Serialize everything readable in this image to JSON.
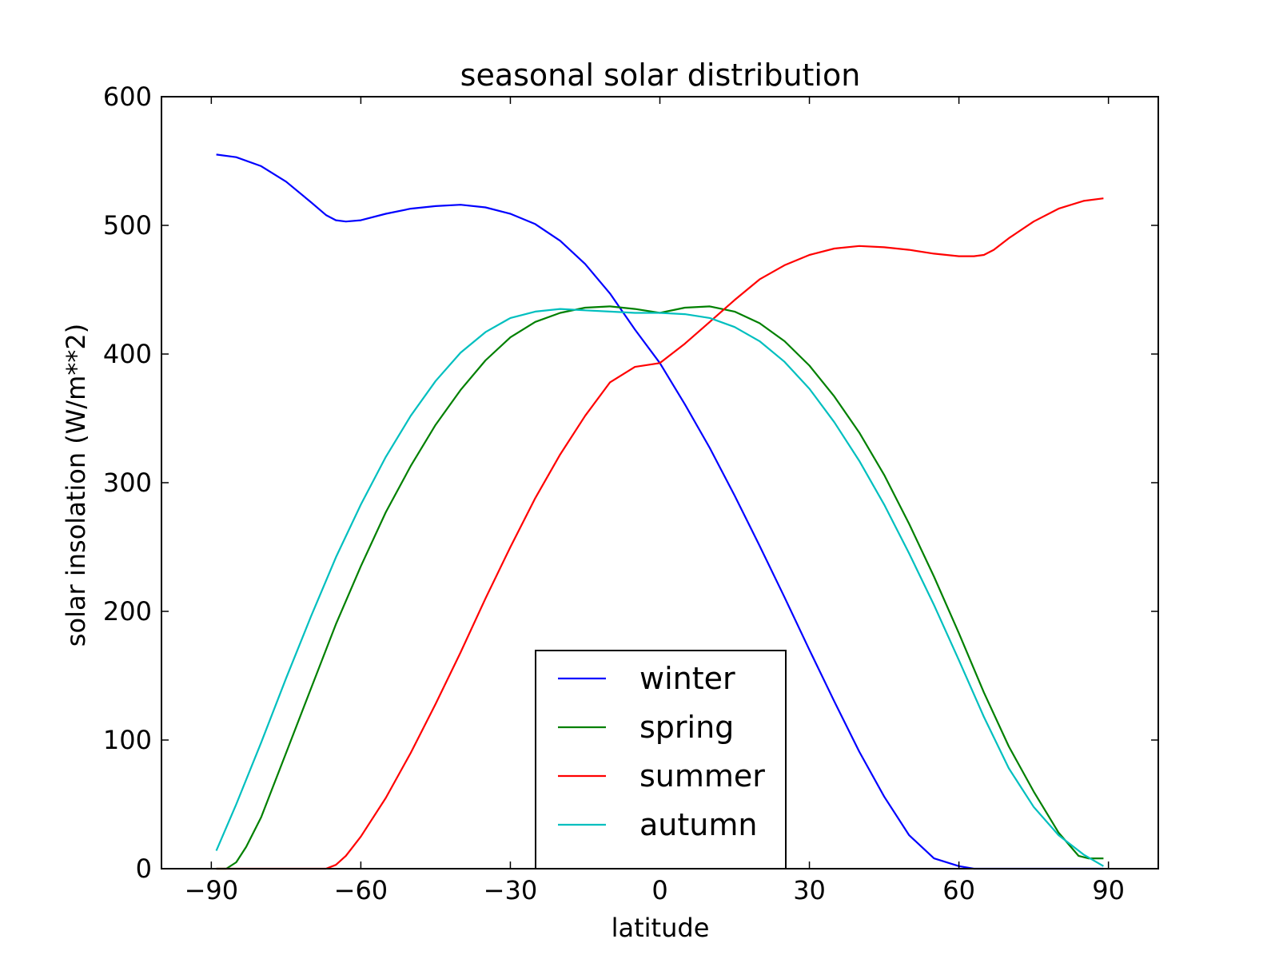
{
  "chart_data": {
    "type": "line",
    "title": "seasonal solar distribution",
    "xlabel": "latitude",
    "ylabel": "solar insolation (W/m**2)",
    "xlim": [
      -100,
      100
    ],
    "ylim": [
      0,
      600
    ],
    "xticks": [
      {
        "value": -90,
        "label": "−90"
      },
      {
        "value": -60,
        "label": "−60"
      },
      {
        "value": -30,
        "label": "−30"
      },
      {
        "value": 0,
        "label": "0"
      },
      {
        "value": 30,
        "label": "30"
      },
      {
        "value": 60,
        "label": "60"
      },
      {
        "value": 90,
        "label": "90"
      }
    ],
    "yticks": [
      {
        "value": 0,
        "label": "0"
      },
      {
        "value": 100,
        "label": "100"
      },
      {
        "value": 200,
        "label": "200"
      },
      {
        "value": 300,
        "label": "300"
      },
      {
        "value": 400,
        "label": "400"
      },
      {
        "value": 500,
        "label": "500"
      },
      {
        "value": 600,
        "label": "600"
      }
    ],
    "grid": false,
    "legend_position": "lower-center",
    "series": [
      {
        "name": "winter",
        "color": "#0000ff",
        "points": [
          [
            -89,
            555
          ],
          [
            -85,
            553
          ],
          [
            -80,
            546
          ],
          [
            -75,
            534
          ],
          [
            -70,
            518
          ],
          [
            -67,
            508
          ],
          [
            -65,
            504
          ],
          [
            -63,
            503
          ],
          [
            -60,
            504
          ],
          [
            -55,
            509
          ],
          [
            -50,
            513
          ],
          [
            -45,
            515
          ],
          [
            -40,
            516
          ],
          [
            -35,
            514
          ],
          [
            -30,
            509
          ],
          [
            -25,
            501
          ],
          [
            -20,
            488
          ],
          [
            -15,
            470
          ],
          [
            -10,
            447
          ],
          [
            -5,
            419
          ],
          [
            0,
            393
          ],
          [
            5,
            361
          ],
          [
            10,
            327
          ],
          [
            15,
            290
          ],
          [
            20,
            251
          ],
          [
            25,
            211
          ],
          [
            30,
            170
          ],
          [
            35,
            130
          ],
          [
            40,
            91
          ],
          [
            45,
            56
          ],
          [
            50,
            26
          ],
          [
            55,
            8
          ],
          [
            60,
            2
          ],
          [
            63,
            0
          ],
          [
            67,
            0
          ],
          [
            75,
            0
          ],
          [
            85,
            0
          ],
          [
            89,
            0
          ]
        ]
      },
      {
        "name": "spring",
        "color": "#008000",
        "points": [
          [
            -89,
            0
          ],
          [
            -87,
            0
          ],
          [
            -85,
            5
          ],
          [
            -83,
            17
          ],
          [
            -80,
            40
          ],
          [
            -75,
            90
          ],
          [
            -70,
            140
          ],
          [
            -65,
            190
          ],
          [
            -60,
            235
          ],
          [
            -55,
            277
          ],
          [
            -50,
            313
          ],
          [
            -45,
            345
          ],
          [
            -40,
            372
          ],
          [
            -35,
            395
          ],
          [
            -30,
            413
          ],
          [
            -25,
            425
          ],
          [
            -20,
            432
          ],
          [
            -15,
            436
          ],
          [
            -10,
            437
          ],
          [
            -5,
            435
          ],
          [
            0,
            432
          ],
          [
            5,
            436
          ],
          [
            10,
            437
          ],
          [
            15,
            433
          ],
          [
            20,
            424
          ],
          [
            25,
            410
          ],
          [
            30,
            391
          ],
          [
            35,
            367
          ],
          [
            40,
            339
          ],
          [
            45,
            306
          ],
          [
            50,
            268
          ],
          [
            55,
            227
          ],
          [
            60,
            183
          ],
          [
            65,
            137
          ],
          [
            70,
            95
          ],
          [
            75,
            60
          ],
          [
            80,
            28
          ],
          [
            84,
            10
          ],
          [
            86,
            8
          ],
          [
            89,
            8
          ]
        ]
      },
      {
        "name": "summer",
        "color": "#ff0000",
        "points": [
          [
            -89,
            0
          ],
          [
            -80,
            0
          ],
          [
            -70,
            0
          ],
          [
            -67,
            0
          ],
          [
            -65,
            3
          ],
          [
            -63,
            10
          ],
          [
            -60,
            25
          ],
          [
            -55,
            55
          ],
          [
            -50,
            90
          ],
          [
            -45,
            128
          ],
          [
            -40,
            168
          ],
          [
            -35,
            210
          ],
          [
            -30,
            250
          ],
          [
            -25,
            288
          ],
          [
            -20,
            322
          ],
          [
            -15,
            352
          ],
          [
            -10,
            378
          ],
          [
            -5,
            390
          ],
          [
            0,
            393
          ],
          [
            5,
            408
          ],
          [
            10,
            425
          ],
          [
            15,
            442
          ],
          [
            20,
            458
          ],
          [
            25,
            469
          ],
          [
            30,
            477
          ],
          [
            35,
            482
          ],
          [
            40,
            484
          ],
          [
            45,
            483
          ],
          [
            50,
            481
          ],
          [
            55,
            478
          ],
          [
            60,
            476
          ],
          [
            63,
            476
          ],
          [
            65,
            477
          ],
          [
            67,
            481
          ],
          [
            70,
            490
          ],
          [
            75,
            503
          ],
          [
            80,
            513
          ],
          [
            85,
            519
          ],
          [
            89,
            521
          ]
        ]
      },
      {
        "name": "autumn",
        "color": "#00bfbf",
        "points": [
          [
            -89,
            14
          ],
          [
            -85,
            50
          ],
          [
            -80,
            98
          ],
          [
            -75,
            148
          ],
          [
            -70,
            196
          ],
          [
            -65,
            242
          ],
          [
            -60,
            283
          ],
          [
            -55,
            320
          ],
          [
            -50,
            352
          ],
          [
            -45,
            379
          ],
          [
            -40,
            401
          ],
          [
            -35,
            417
          ],
          [
            -30,
            428
          ],
          [
            -25,
            433
          ],
          [
            -20,
            435
          ],
          [
            -15,
            434
          ],
          [
            -10,
            433
          ],
          [
            -5,
            432
          ],
          [
            0,
            432
          ],
          [
            5,
            431
          ],
          [
            10,
            428
          ],
          [
            15,
            421
          ],
          [
            20,
            410
          ],
          [
            25,
            394
          ],
          [
            30,
            373
          ],
          [
            35,
            347
          ],
          [
            40,
            317
          ],
          [
            45,
            283
          ],
          [
            50,
            245
          ],
          [
            55,
            205
          ],
          [
            60,
            162
          ],
          [
            65,
            118
          ],
          [
            70,
            78
          ],
          [
            75,
            48
          ],
          [
            80,
            26
          ],
          [
            85,
            11
          ],
          [
            89,
            2
          ]
        ]
      }
    ]
  }
}
